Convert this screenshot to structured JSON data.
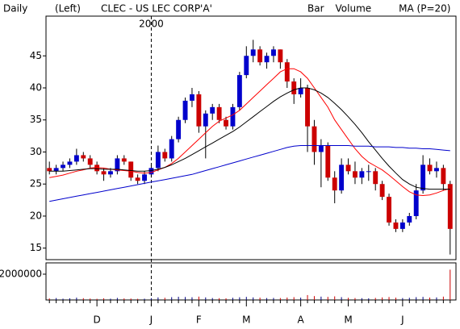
{
  "chart_data": {
    "type": "candlestick",
    "period": "Daily",
    "axis_side": "(Left)",
    "title": "CLEC - US LEC CORP'A'",
    "legend_extra": [
      {
        "text": "Bar",
        "color": "#000000"
      },
      {
        "text": "Volume",
        "color": "#00b000"
      }
    ],
    "annotations": [
      {
        "text": "2000",
        "at": 15
      }
    ],
    "categories": [
      null,
      null,
      null,
      null,
      null,
      null,
      null,
      "D",
      null,
      null,
      null,
      null,
      null,
      null,
      null,
      "J",
      null,
      null,
      null,
      null,
      null,
      null,
      "F",
      null,
      null,
      null,
      null,
      null,
      null,
      "M",
      null,
      null,
      null,
      null,
      null,
      null,
      null,
      "A",
      null,
      null,
      null,
      null,
      null,
      null,
      "M",
      null,
      null,
      null,
      null,
      null,
      null,
      null,
      "J",
      null,
      null,
      null,
      null,
      null,
      null,
      null
    ],
    "open": [
      27.5,
      27,
      27.5,
      28,
      28.5,
      29.5,
      29,
      28,
      27,
      26.5,
      27,
      29,
      28.5,
      26,
      25.5,
      26.5,
      27.5,
      30,
      29,
      32,
      35,
      38,
      39,
      34,
      36,
      37,
      35,
      34,
      37,
      42,
      45,
      46,
      44,
      45,
      46,
      44,
      41,
      39,
      40,
      34,
      30,
      31,
      26,
      24,
      28,
      27,
      26,
      27,
      27,
      25,
      23,
      19,
      18,
      19,
      20,
      24,
      28,
      27,
      27.5,
      25
    ],
    "high": [
      28.5,
      28,
      28.5,
      29,
      30.5,
      30,
      29.5,
      28.5,
      27.5,
      27.5,
      29.5,
      29.5,
      28.5,
      26.5,
      27,
      28,
      31,
      30.5,
      32.5,
      35.5,
      38.5,
      40,
      39.5,
      36.5,
      37.5,
      37.5,
      35.5,
      37.5,
      42.5,
      46.5,
      47.5,
      46.5,
      45.5,
      46.5,
      46,
      44.5,
      41.5,
      41.5,
      40.5,
      35,
      32,
      31.5,
      27,
      29,
      29,
      28.5,
      27.5,
      28,
      27.5,
      25.5,
      23.5,
      19.5,
      19.5,
      20.5,
      25,
      29.5,
      29,
      28.5,
      28,
      25.5
    ],
    "low": [
      26.5,
      26.5,
      27,
      27.5,
      28,
      28.5,
      27.5,
      26.5,
      25.5,
      26,
      26.5,
      28,
      25.5,
      25,
      25,
      26,
      27,
      28.5,
      28.5,
      31.5,
      34.5,
      37,
      33,
      29,
      35,
      34.5,
      33.5,
      33.5,
      36.5,
      41.5,
      44,
      43.5,
      43,
      44,
      43,
      40,
      37.5,
      38.5,
      30,
      28,
      24.5,
      25.5,
      22,
      23.5,
      26.5,
      25,
      25,
      25.5,
      24,
      22.5,
      18.5,
      17.5,
      17.5,
      18.5,
      19.5,
      23.5,
      26.5,
      26,
      24,
      14
    ],
    "close": [
      27,
      27.5,
      28,
      28.5,
      29.5,
      29,
      28,
      27,
      26.5,
      27,
      29,
      28.5,
      26,
      25.5,
      26.5,
      27.5,
      30,
      29,
      32,
      35,
      38,
      39,
      34,
      36,
      37,
      35,
      34,
      37,
      42,
      45,
      46,
      44,
      45,
      46,
      44,
      41,
      39,
      40,
      34,
      30,
      31,
      26,
      24,
      28,
      27,
      26,
      27,
      27,
      25,
      23,
      19,
      18,
      19,
      20,
      24,
      28,
      27,
      27.5,
      25,
      18
    ],
    "up_color": "#0000cc",
    "down_color": "#cc0000",
    "series": [
      {
        "name": "MA (P=20)",
        "color": "#ff0000",
        "values": [
          26,
          26.2,
          26.4,
          26.7,
          27,
          27.2,
          27.5,
          27.6,
          27.5,
          27.3,
          27.2,
          27.1,
          27,
          26.8,
          26.7,
          26.8,
          27.2,
          27.6,
          28.2,
          29,
          30,
          31,
          32,
          33,
          34,
          34.8,
          35.3,
          35.8,
          36.5,
          37.5,
          38.5,
          39.5,
          40.5,
          41.5,
          42.5,
          43,
          43,
          42.5,
          41.5,
          40,
          38.5,
          37,
          35,
          33.5,
          32,
          30.5,
          29.3,
          28.4,
          27.8,
          27.2,
          26.4,
          25.5,
          24.6,
          23.8,
          23.3,
          23.2,
          23.3,
          23.6,
          24,
          24.3
        ]
      },
      {
        "color": "#000000",
        "values": [
          27,
          27,
          27,
          27.1,
          27.2,
          27.3,
          27.4,
          27.4,
          27.3,
          27.3,
          27.3,
          27.2,
          27.1,
          27,
          27,
          27.1,
          27.3,
          27.6,
          28,
          28.5,
          29,
          29.6,
          30.2,
          30.8,
          31.4,
          32,
          32.6,
          33.2,
          33.9,
          34.7,
          35.5,
          36.3,
          37.1,
          37.9,
          38.6,
          39.2,
          39.7,
          40,
          40,
          39.7,
          39.2,
          38.5,
          37.6,
          36.6,
          35.5,
          34.3,
          33,
          31.6,
          30.3,
          29,
          27.8,
          26.7,
          25.7,
          25,
          24.5,
          24.3,
          24.2,
          24.2,
          24.2,
          24.2
        ]
      },
      {
        "color": "#0000cc",
        "values": [
          22.3,
          22.5,
          22.7,
          22.9,
          23.1,
          23.3,
          23.5,
          23.7,
          23.9,
          24.1,
          24.3,
          24.5,
          24.7,
          24.9,
          25.1,
          25.3,
          25.5,
          25.7,
          25.9,
          26.1,
          26.3,
          26.5,
          26.8,
          27.1,
          27.4,
          27.7,
          28,
          28.3,
          28.6,
          28.9,
          29.2,
          29.5,
          29.8,
          30.1,
          30.4,
          30.7,
          30.9,
          31,
          31,
          31,
          31,
          31,
          31,
          31,
          31,
          30.9,
          30.9,
          30.9,
          30.8,
          30.8,
          30.8,
          30.7,
          30.7,
          30.6,
          30.6,
          30.5,
          30.5,
          30.4,
          30.3,
          30.2
        ]
      }
    ],
    "ylim": [
      13.2,
      51.2
    ],
    "yticks": [
      15,
      20,
      25,
      30,
      35,
      40,
      45
    ],
    "volume": {
      "color": "#000080",
      "values": [
        120000,
        150000,
        100000,
        130000,
        180000,
        140000,
        110000,
        90000,
        130000,
        100000,
        160000,
        120000,
        110000,
        90000,
        100000,
        140000,
        200000,
        170000,
        220000,
        250000,
        230000,
        210000,
        260000,
        200000,
        150000,
        140000,
        130000,
        170000,
        210000,
        240000,
        200000,
        180000,
        150000,
        160000,
        150000,
        190000,
        220000,
        180000,
        380000,
        300000,
        260000,
        240000,
        280000,
        220000,
        170000,
        150000,
        140000,
        130000,
        160000,
        200000,
        230000,
        180000,
        150000,
        170000,
        220000,
        240000,
        190000,
        200000,
        260000,
        2350000
      ],
      "ylim": [
        0,
        2875000
      ],
      "yticks": [
        2000000
      ]
    }
  }
}
